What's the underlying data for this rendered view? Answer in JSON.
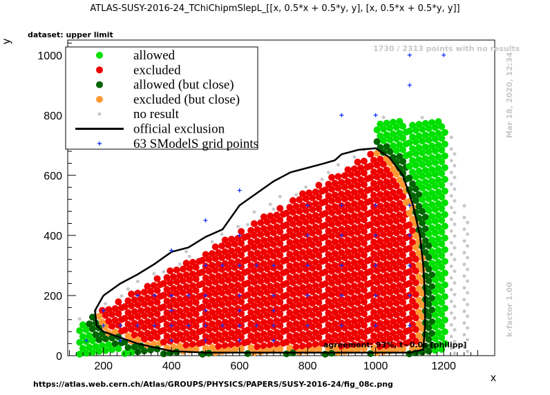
{
  "chart_data": {
    "type": "scatter",
    "title": "ATLAS-SUSY-2016-24_TChiChipmSlepL_[[x, 0.5*x + 0.5*y, y], [x, 0.5*x + 0.5*y, y]]",
    "subtitle": "dataset: upper limit",
    "xlabel": "x",
    "ylabel": "y",
    "xlim": [
      95,
      1350
    ],
    "ylim": [
      0,
      1050
    ],
    "xticks": [
      "200",
      "400",
      "600",
      "800",
      "1000",
      "1200"
    ],
    "yticks": [
      "0",
      "200",
      "400",
      "600",
      "800",
      "1000"
    ],
    "legend": {
      "placement": "top-left",
      "entries": [
        {
          "label": "allowed",
          "color": "#00e000"
        },
        {
          "label": "excluded",
          "color": "#ee0000"
        },
        {
          "label": "allowed (but close)",
          "color": "#006400"
        },
        {
          "label": "excluded (but close)",
          "color": "#ff9933"
        },
        {
          "label": "no result",
          "color": "#c8c8c8"
        },
        {
          "label": "official exclusion",
          "color": "#000000"
        },
        {
          "label": "63 SModelS grid points",
          "color": "#0000ff"
        }
      ]
    },
    "official_exclusion": [
      [
        200,
        200
      ],
      [
        250,
        240
      ],
      [
        300,
        270
      ],
      [
        350,
        305
      ],
      [
        400,
        345
      ],
      [
        450,
        360
      ],
      [
        500,
        395
      ],
      [
        550,
        420
      ],
      [
        600,
        500
      ],
      [
        650,
        540
      ],
      [
        700,
        580
      ],
      [
        750,
        610
      ],
      [
        800,
        625
      ],
      [
        850,
        640
      ],
      [
        880,
        650
      ],
      [
        900,
        670
      ],
      [
        950,
        685
      ],
      [
        1000,
        690
      ],
      [
        1040,
        660
      ],
      [
        1080,
        600
      ],
      [
        1110,
        500
      ],
      [
        1130,
        400
      ],
      [
        1140,
        300
      ],
      [
        1145,
        200
      ],
      [
        1145,
        100
      ],
      [
        1140,
        20
      ],
      [
        1100,
        10
      ],
      [
        900,
        10
      ],
      [
        700,
        10
      ],
      [
        500,
        10
      ],
      [
        400,
        15
      ],
      [
        300,
        40
      ],
      [
        250,
        60
      ],
      [
        200,
        80
      ],
      [
        180,
        100
      ],
      [
        175,
        150
      ],
      [
        200,
        200
      ]
    ],
    "grid_points": [
      [
        150,
        50
      ],
      [
        200,
        100
      ],
      [
        200,
        150
      ],
      [
        250,
        50
      ],
      [
        250,
        100
      ],
      [
        300,
        100
      ],
      [
        300,
        200
      ],
      [
        350,
        100
      ],
      [
        350,
        200
      ],
      [
        400,
        50
      ],
      [
        400,
        100
      ],
      [
        400,
        150
      ],
      [
        400,
        200
      ],
      [
        400,
        350
      ],
      [
        450,
        100
      ],
      [
        450,
        200
      ],
      [
        500,
        50
      ],
      [
        500,
        100
      ],
      [
        500,
        150
      ],
      [
        500,
        200
      ],
      [
        500,
        300
      ],
      [
        500,
        450
      ],
      [
        550,
        100
      ],
      [
        550,
        300
      ],
      [
        600,
        50
      ],
      [
        600,
        100
      ],
      [
        600,
        150
      ],
      [
        600,
        200
      ],
      [
        600,
        300
      ],
      [
        600,
        400
      ],
      [
        600,
        550
      ],
      [
        650,
        100
      ],
      [
        650,
        300
      ],
      [
        700,
        50
      ],
      [
        700,
        100
      ],
      [
        700,
        150
      ],
      [
        700,
        200
      ],
      [
        700,
        300
      ],
      [
        800,
        100
      ],
      [
        800,
        200
      ],
      [
        800,
        300
      ],
      [
        800,
        400
      ],
      [
        800,
        500
      ],
      [
        900,
        100
      ],
      [
        900,
        200
      ],
      [
        900,
        300
      ],
      [
        900,
        400
      ],
      [
        900,
        500
      ],
      [
        900,
        800
      ],
      [
        1000,
        100
      ],
      [
        1000,
        200
      ],
      [
        1000,
        300
      ],
      [
        1000,
        400
      ],
      [
        1000,
        500
      ],
      [
        1000,
        800
      ],
      [
        1100,
        100
      ],
      [
        1100,
        200
      ],
      [
        1100,
        300
      ],
      [
        1100,
        400
      ],
      [
        1100,
        500
      ],
      [
        1100,
        900
      ],
      [
        1100,
        1000
      ],
      [
        1200,
        1000
      ]
    ],
    "annotations": {
      "no_results": "1730 / 2313 points with no results",
      "timestamp": "Mar 18, 2020, 12:34",
      "kfactor": "k-factor 1.00",
      "agreement": "agreement: 93%, t~0.0s [philipp]",
      "source": "https://atlas.web.cern.ch/Atlas/GROUPS/PHYSICS/PAPERS/SUSY-2016-24/fig_08c.png"
    },
    "grid": false
  }
}
